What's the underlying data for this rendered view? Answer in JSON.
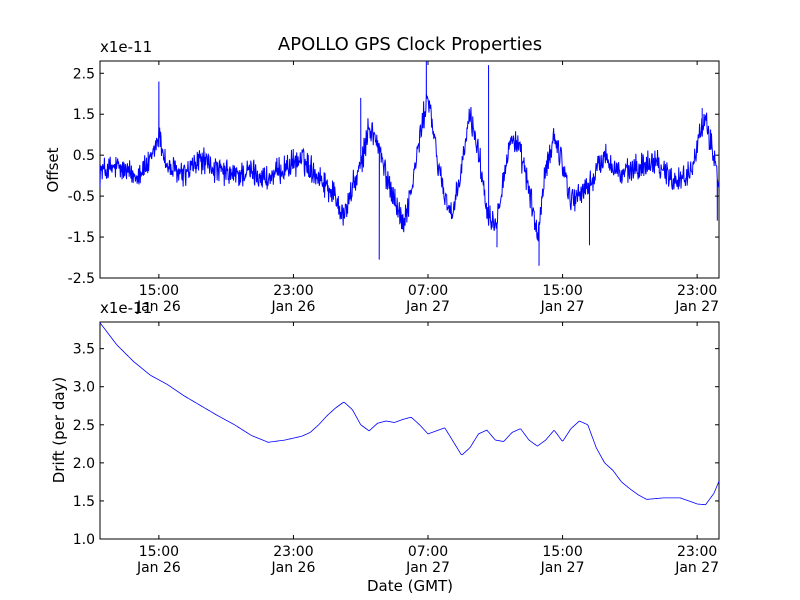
{
  "figure": {
    "title": "APOLLO GPS Clock Properties"
  },
  "chart_data": [
    {
      "type": "line",
      "title": "APOLLO GPS Clock Properties",
      "xlabel": "",
      "ylabel": "Offset",
      "y_multiplier": "x1e-11",
      "xlim": [
        11.5,
        48.3
      ],
      "ylim": [
        -2.5,
        2.8
      ],
      "x_unit": "hours since Jan 26 00:00 GMT",
      "xticks": [
        {
          "x": 15,
          "time": "15:00",
          "date": "Jan 26"
        },
        {
          "x": 23,
          "time": "23:00",
          "date": "Jan 26"
        },
        {
          "x": 31,
          "time": "07:00",
          "date": "Jan 27"
        },
        {
          "x": 39,
          "time": "15:00",
          "date": "Jan 27"
        },
        {
          "x": 47,
          "time": "23:00",
          "date": "Jan 27"
        }
      ],
      "yticks": [
        {
          "y": 2.5,
          "label": "2.5"
        },
        {
          "y": 1.5,
          "label": "1.5"
        },
        {
          "y": 0.5,
          "label": "0.5"
        },
        {
          "y": -0.5,
          "label": "-0.5"
        },
        {
          "y": -1.5,
          "label": "-1.5"
        },
        {
          "y": -2.5,
          "label": "-2.5"
        }
      ],
      "series": [
        {
          "name": "offset",
          "color": "#0000ff",
          "noise_amplitude": 0.28,
          "x": [
            11.5,
            12.5,
            13.5,
            14.5,
            15.0,
            15.5,
            16.5,
            17.5,
            18.5,
            19.5,
            20.5,
            21.5,
            22.5,
            23.5,
            24.5,
            25.5,
            26.0,
            26.5,
            27.0,
            27.5,
            28.0,
            28.5,
            29.0,
            29.5,
            30.0,
            30.5,
            31.0,
            31.5,
            32.0,
            32.5,
            33.0,
            33.5,
            34.0,
            34.5,
            35.0,
            35.5,
            36.0,
            36.5,
            37.0,
            37.5,
            38.0,
            38.5,
            39.0,
            39.5,
            40.5,
            41.5,
            42.5,
            43.5,
            44.5,
            45.5,
            46.5,
            47.0,
            47.5,
            48.0,
            48.3
          ],
          "y": [
            0.1,
            0.2,
            0.0,
            0.3,
            1.0,
            0.2,
            0.0,
            0.4,
            0.1,
            0.0,
            0.1,
            -0.1,
            0.2,
            0.4,
            0.0,
            -0.5,
            -1.0,
            -0.3,
            0.2,
            1.2,
            0.8,
            0.0,
            -0.5,
            -1.2,
            -0.4,
            0.9,
            2.0,
            0.5,
            -0.5,
            -1.0,
            0.2,
            1.5,
            0.6,
            -0.8,
            -1.2,
            0.0,
            1.0,
            0.5,
            -0.3,
            -1.5,
            0.1,
            1.0,
            0.3,
            -0.6,
            -0.3,
            0.5,
            0.0,
            0.2,
            0.4,
            -0.1,
            0.0,
            0.8,
            1.3,
            0.5,
            -0.2
          ],
          "spikes": [
            {
              "x": 15.0,
              "y": 2.3
            },
            {
              "x": 27.0,
              "y": 1.9
            },
            {
              "x": 28.1,
              "y": -2.05
            },
            {
              "x": 30.9,
              "y": 2.8
            },
            {
              "x": 34.6,
              "y": 2.7
            },
            {
              "x": 35.1,
              "y": -1.75
            },
            {
              "x": 37.6,
              "y": -2.2
            },
            {
              "x": 40.6,
              "y": -1.7
            },
            {
              "x": 47.3,
              "y": 1.65
            },
            {
              "x": 48.2,
              "y": -1.1
            }
          ]
        }
      ]
    },
    {
      "type": "line",
      "title": "",
      "xlabel": "Date (GMT)",
      "ylabel": "Drift (per day)",
      "y_multiplier": "x1e-11",
      "xlim": [
        11.5,
        48.3
      ],
      "ylim": [
        1.0,
        3.85
      ],
      "x_unit": "hours since Jan 26 00:00 GMT",
      "xticks": [
        {
          "x": 15,
          "time": "15:00",
          "date": "Jan 26"
        },
        {
          "x": 23,
          "time": "23:00",
          "date": "Jan 26"
        },
        {
          "x": 31,
          "time": "07:00",
          "date": "Jan 27"
        },
        {
          "x": 39,
          "time": "15:00",
          "date": "Jan 27"
        },
        {
          "x": 47,
          "time": "23:00",
          "date": "Jan 27"
        }
      ],
      "yticks": [
        {
          "y": 3.5,
          "label": "3.5"
        },
        {
          "y": 3.0,
          "label": "3.0"
        },
        {
          "y": 2.5,
          "label": "2.5"
        },
        {
          "y": 2.0,
          "label": "2.0"
        },
        {
          "y": 1.5,
          "label": "1.5"
        },
        {
          "y": 1.0,
          "label": "1.0"
        }
      ],
      "series": [
        {
          "name": "drift",
          "color": "#0000ff",
          "x": [
            11.5,
            12.5,
            13.5,
            14.5,
            15.5,
            16.5,
            17.5,
            18.5,
            19.5,
            20.0,
            20.5,
            21.5,
            22.5,
            23.5,
            24.0,
            24.5,
            25.0,
            25.5,
            26.0,
            26.5,
            27.0,
            27.5,
            28.0,
            28.5,
            29.0,
            29.5,
            30.0,
            30.5,
            31.0,
            31.5,
            32.0,
            32.5,
            33.0,
            33.5,
            34.0,
            34.5,
            35.0,
            35.5,
            36.0,
            36.5,
            37.0,
            37.5,
            38.0,
            38.5,
            39.0,
            39.5,
            40.0,
            40.5,
            41.0,
            41.5,
            42.0,
            42.5,
            43.0,
            43.5,
            44.0,
            44.5,
            45.0,
            45.5,
            46.0,
            46.5,
            47.0,
            47.5,
            48.0,
            48.3
          ],
          "y": [
            3.84,
            3.55,
            3.33,
            3.15,
            3.03,
            2.88,
            2.75,
            2.62,
            2.5,
            2.43,
            2.36,
            2.27,
            2.3,
            2.35,
            2.4,
            2.5,
            2.62,
            2.72,
            2.8,
            2.7,
            2.5,
            2.42,
            2.52,
            2.55,
            2.53,
            2.57,
            2.6,
            2.5,
            2.38,
            2.42,
            2.46,
            2.28,
            2.1,
            2.2,
            2.38,
            2.43,
            2.3,
            2.28,
            2.4,
            2.45,
            2.3,
            2.22,
            2.3,
            2.43,
            2.28,
            2.45,
            2.55,
            2.5,
            2.2,
            2.0,
            1.9,
            1.75,
            1.66,
            1.58,
            1.52,
            1.53,
            1.54,
            1.54,
            1.54,
            1.5,
            1.46,
            1.45,
            1.6,
            1.76
          ]
        }
      ]
    }
  ]
}
